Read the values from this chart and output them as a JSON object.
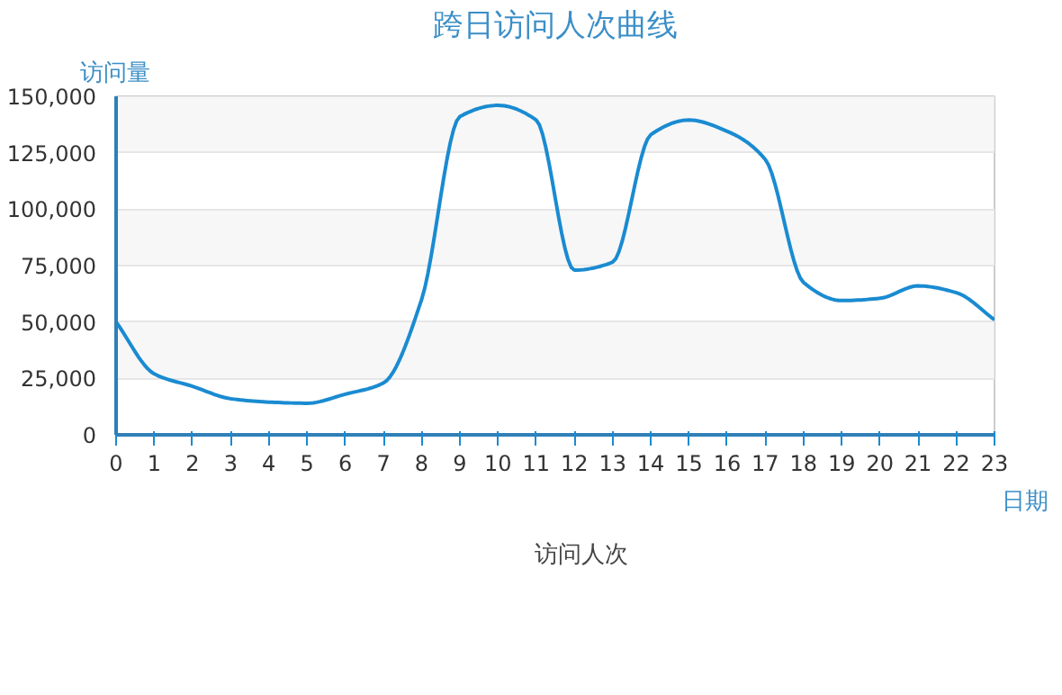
{
  "chart_data": {
    "type": "line",
    "title": "跨日访问人次曲线",
    "xlabel": "日期",
    "ylabel": "访问量",
    "x": [
      0,
      1,
      2,
      3,
      4,
      5,
      6,
      7,
      8,
      9,
      10,
      11,
      12,
      13,
      14,
      15,
      16,
      17,
      18,
      19,
      20,
      21,
      22,
      23
    ],
    "series": [
      {
        "name": "访问人次",
        "color": "#1a8bd1",
        "values": [
          50000,
          27000,
          21500,
          16000,
          14500,
          14000,
          18000,
          23000,
          60000,
          141000,
          146000,
          139500,
          73000,
          76500,
          133000,
          139500,
          134500,
          122000,
          67500,
          59500,
          60500,
          66000,
          63000,
          51000
        ]
      }
    ],
    "xlim": [
      0,
      23
    ],
    "xticks": [
      0,
      1,
      2,
      3,
      4,
      5,
      6,
      7,
      8,
      9,
      10,
      11,
      12,
      13,
      14,
      15,
      16,
      17,
      18,
      19,
      20,
      21,
      22,
      23
    ],
    "ylim": [
      0,
      150000
    ],
    "yticks": [
      {
        "value": 0,
        "label": "0"
      },
      {
        "value": 25000,
        "label": "25,000"
      },
      {
        "value": 50000,
        "label": "50,000"
      },
      {
        "value": 75000,
        "label": "75,000"
      },
      {
        "value": 100000,
        "label": "100,000"
      },
      {
        "value": 125000,
        "label": "125,000"
      },
      {
        "value": 150000,
        "label": "150,000"
      }
    ],
    "grid": "y",
    "legend": "bottom"
  }
}
